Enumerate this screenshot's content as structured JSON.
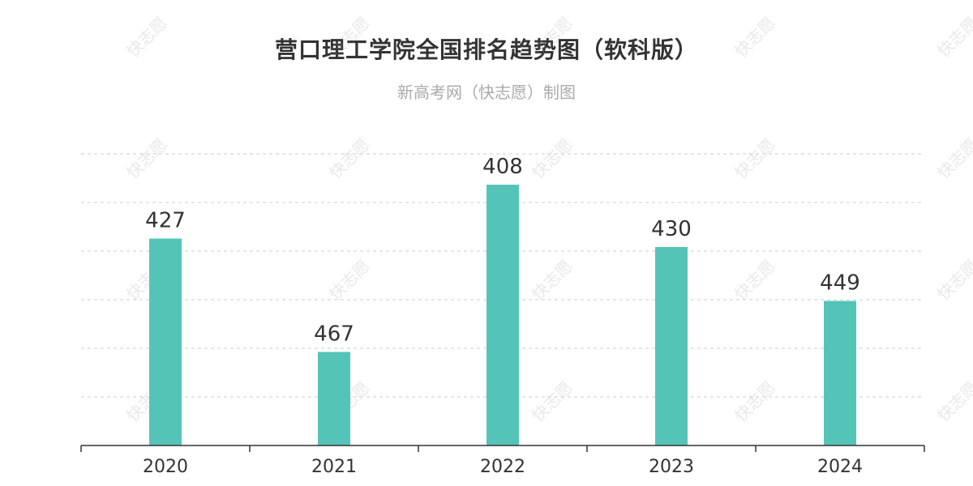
{
  "title": "营口理工学院全国排名趋势图（软科版）",
  "subtitle": "新高考网（快志愿）制图",
  "watermark": "快志愿",
  "colors": {
    "bar": "#55c4b8",
    "grid": "#cccccc",
    "axis": "#333333",
    "label": "#333333"
  },
  "chart_data": {
    "type": "bar",
    "categories": [
      "2020",
      "2021",
      "2022",
      "2023",
      "2024"
    ],
    "values": [
      427,
      467,
      408,
      430,
      449
    ],
    "data_labels": [
      "427",
      "467",
      "408",
      "430",
      "449"
    ],
    "title": "营口理工学院全国排名趋势图（软科版）",
    "xlabel": "",
    "ylabel": "",
    "y_inverted": true,
    "ylim": [
      500,
      380
    ],
    "grid": true,
    "legend": "none"
  }
}
